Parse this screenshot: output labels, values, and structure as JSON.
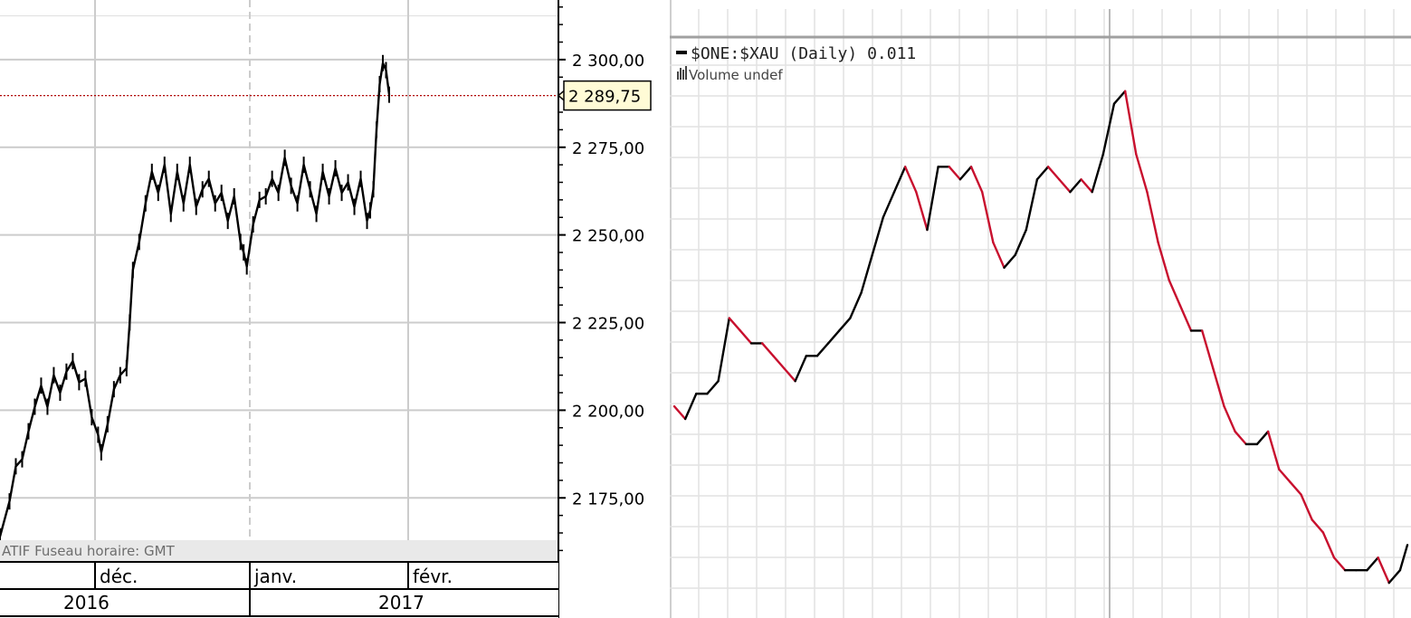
{
  "chart_data": [
    {
      "type": "line",
      "title": "",
      "xlabel": "",
      "ylabel": "",
      "ylim": [
        2157,
        2317
      ],
      "x_range": [
        0,
        125
      ],
      "y_ticks": [
        {
          "value": 2300,
          "label": "2 300,00"
        },
        {
          "value": 2275,
          "label": "2 275,00"
        },
        {
          "value": 2250,
          "label": "2 250,00"
        },
        {
          "value": 2225,
          "label": "2 225,00"
        },
        {
          "value": 2200,
          "label": "2 200,00"
        },
        {
          "value": 2175,
          "label": "2 175,00"
        }
      ],
      "current_value": 2289.75,
      "current_label": "2 289,75",
      "timezone_text": "ATIF   Fuseau horaire: GMT",
      "month_labels": [
        {
          "x": 30,
          "label": "déc."
        },
        {
          "x": 79,
          "label": "janv."
        },
        {
          "x": 129,
          "label": "févr."
        }
      ],
      "year_labels": [
        {
          "x": 0,
          "label": "2016"
        },
        {
          "x": 79,
          "label": "2017"
        }
      ],
      "grid": true,
      "line_color": "#000000",
      "x": [
        0,
        3,
        5,
        7,
        9,
        11,
        13,
        15,
        17,
        19,
        21,
        23,
        25,
        27,
        29,
        31,
        32,
        34,
        36,
        38,
        40,
        41,
        42,
        44,
        46,
        48,
        50,
        52,
        54,
        56,
        58,
        60,
        62,
        64,
        66,
        68,
        70,
        72,
        74,
        76,
        77,
        78,
        80,
        82,
        84,
        86,
        88,
        90,
        92,
        94,
        96,
        98,
        100,
        102,
        104,
        106,
        108,
        110,
        112,
        114,
        116,
        117,
        118,
        119,
        120,
        121,
        122,
        123
      ],
      "values": [
        2164,
        2174,
        2184,
        2186,
        2194,
        2201,
        2207,
        2201,
        2210,
        2205,
        2211,
        2214,
        2208,
        2209,
        2198,
        2193,
        2188,
        2196,
        2206,
        2210,
        2212,
        2225,
        2240,
        2248,
        2259,
        2268,
        2262,
        2270,
        2256,
        2268,
        2259,
        2270,
        2258,
        2263,
        2266,
        2259,
        2262,
        2254,
        2261,
        2248,
        2245,
        2241,
        2253,
        2260,
        2261,
        2266,
        2262,
        2272,
        2264,
        2259,
        2270,
        2263,
        2256,
        2268,
        2261,
        2269,
        2262,
        2265,
        2258,
        2266,
        2254,
        2257,
        2263,
        2280,
        2293,
        2299,
        2297,
        2290
      ]
    },
    {
      "type": "line",
      "title": "$ONE:$XAU (Daily) 0.011",
      "subtitle": "Volume undef",
      "xlabel": "",
      "ylabel": "",
      "x_range": [
        0,
        200
      ],
      "ylim": [
        0.0085,
        0.013
      ],
      "grid": true,
      "line_colors": {
        "up": "#000000",
        "down": "#c8102e"
      },
      "x": [
        0,
        3,
        6,
        9,
        12,
        15,
        18,
        21,
        24,
        27,
        30,
        33,
        36,
        39,
        42,
        45,
        48,
        51,
        54,
        57,
        60,
        63,
        66,
        69,
        72,
        75,
        78,
        81,
        84,
        87,
        90,
        93,
        96,
        99,
        102,
        105,
        108,
        111,
        114,
        117,
        120,
        123,
        126,
        129,
        132,
        135,
        138,
        141,
        144,
        147,
        150,
        153,
        156,
        159,
        162,
        165,
        168,
        171,
        174,
        177,
        180,
        183,
        186,
        189,
        192,
        195,
        198,
        200
      ],
      "values": [
        0.0101,
        0.01,
        0.0102,
        0.0102,
        0.0103,
        0.0108,
        0.0107,
        0.0106,
        0.0106,
        0.0105,
        0.0104,
        0.0103,
        0.0105,
        0.0105,
        0.0106,
        0.0107,
        0.0108,
        0.011,
        0.0113,
        0.0116,
        0.0118,
        0.012,
        0.0118,
        0.0115,
        0.012,
        0.012,
        0.0119,
        0.012,
        0.0118,
        0.0114,
        0.0112,
        0.0113,
        0.0115,
        0.0119,
        0.012,
        0.0119,
        0.0118,
        0.0119,
        0.0118,
        0.0121,
        0.0125,
        0.0126,
        0.0121,
        0.0118,
        0.0114,
        0.0111,
        0.0109,
        0.0107,
        0.0107,
        0.0104,
        0.0101,
        0.0099,
        0.0098,
        0.0098,
        0.0099,
        0.0096,
        0.0095,
        0.0094,
        0.0092,
        0.0091,
        0.0089,
        0.0088,
        0.0088,
        0.0088,
        0.0089,
        0.0087,
        0.0088,
        0.009
      ]
    }
  ]
}
